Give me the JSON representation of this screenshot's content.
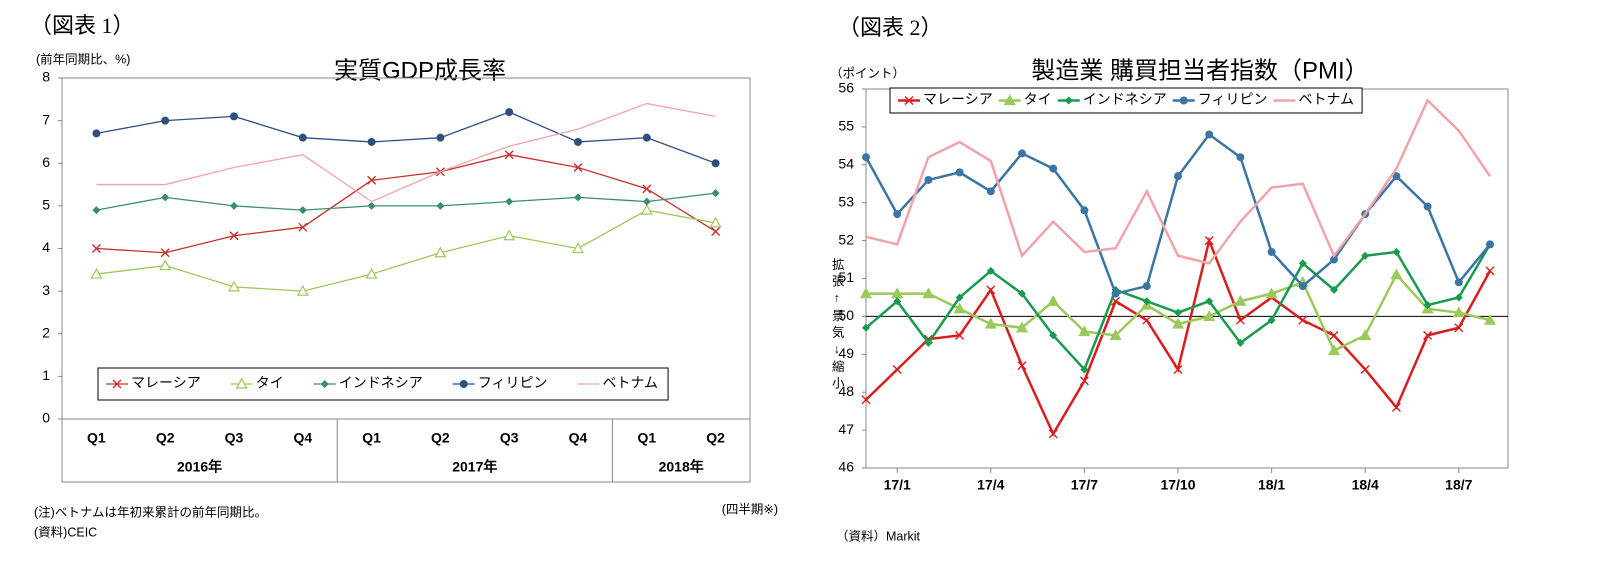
{
  "chart_data": [
    {
      "type": "line",
      "figure_label": "（図表 1）",
      "title": "実質GDP成長率",
      "y_unit_label": "(前年同期比、%)",
      "note": "(注)ベトナムは年初来累計の前年同期比。",
      "source": "(資料)CEIC",
      "x_axis_label": "(四半期※)",
      "groups": [
        {
          "label": "2016年",
          "categories": [
            "Q1",
            "Q2",
            "Q3",
            "Q4"
          ]
        },
        {
          "label": "2017年",
          "categories": [
            "Q1",
            "Q2",
            "Q3",
            "Q4"
          ]
        },
        {
          "label": "2018年",
          "categories": [
            "Q1",
            "Q2"
          ]
        }
      ],
      "ylim": [
        0,
        8
      ],
      "yticks": [
        0,
        1,
        2,
        3,
        4,
        5,
        6,
        7,
        8
      ],
      "grid": false,
      "legend": "bottom",
      "series": [
        {
          "name": "マレーシア",
          "color": "#c8302a",
          "marker": "x",
          "values": [
            4.0,
            3.9,
            4.3,
            4.5,
            5.6,
            5.8,
            6.2,
            5.9,
            5.4,
            4.4
          ]
        },
        {
          "name": "タイ",
          "color": "#9bc95a",
          "marker": "triangle-open",
          "values": [
            3.4,
            3.6,
            3.1,
            3.0,
            3.4,
            3.9,
            4.3,
            4.0,
            4.9,
            4.6
          ]
        },
        {
          "name": "インドネシア",
          "color": "#3a8f6a",
          "marker": "diamond",
          "values": [
            4.9,
            5.2,
            5.0,
            4.9,
            5.0,
            5.0,
            5.1,
            5.2,
            5.1,
            5.3
          ]
        },
        {
          "name": "フィリピン",
          "color": "#2f4f7f",
          "marker": "circle",
          "values": [
            6.7,
            7.0,
            7.1,
            6.6,
            6.5,
            6.6,
            7.2,
            6.5,
            6.6,
            6.0
          ]
        },
        {
          "name": "ベトナム",
          "color": "#f2a3a8",
          "marker": "none",
          "values": [
            5.5,
            5.5,
            5.9,
            6.2,
            5.1,
            5.8,
            6.4,
            6.8,
            7.4,
            7.1
          ]
        }
      ]
    },
    {
      "type": "line",
      "figure_label": "（図表 2）",
      "title": "製造業 購買担当者指数（PMI）",
      "y_unit_label": "（ポイント）",
      "y_axis_label": "拡張↑景気↓縮小",
      "source": "（資料）Markit",
      "categories": [
        null,
        "17/1",
        null,
        null,
        "17/4",
        null,
        null,
        "17/7",
        null,
        null,
        "17/10",
        null,
        null,
        "18/1",
        null,
        null,
        "18/4",
        null,
        null,
        "18/7",
        null
      ],
      "ylim": [
        46,
        56
      ],
      "yticks": [
        46,
        47,
        48,
        49,
        50,
        51,
        52,
        53,
        54,
        55,
        56
      ],
      "grid": false,
      "reference_line": 50,
      "legend": "top-left",
      "series": [
        {
          "name": "マレーシア",
          "color": "#d91e1e",
          "marker": "x",
          "values": [
            47.8,
            48.6,
            49.4,
            49.5,
            50.7,
            48.7,
            46.9,
            48.3,
            50.4,
            49.9,
            48.6,
            52.0,
            49.9,
            50.5,
            49.9,
            49.5,
            48.6,
            47.6,
            49.5,
            49.7,
            51.2
          ]
        },
        {
          "name": "タイ",
          "color": "#9bc95a",
          "marker": "triangle",
          "values": [
            50.6,
            50.6,
            50.6,
            50.2,
            49.8,
            49.7,
            50.4,
            49.6,
            49.5,
            50.3,
            49.8,
            50.0,
            50.4,
            50.6,
            50.9,
            49.1,
            49.5,
            51.1,
            50.2,
            50.1,
            49.9
          ]
        },
        {
          "name": "インドネシア",
          "color": "#1a9a4e",
          "marker": "diamond",
          "values": [
            49.7,
            50.4,
            49.3,
            50.5,
            51.2,
            50.6,
            49.5,
            48.6,
            50.7,
            50.4,
            50.1,
            50.4,
            49.3,
            49.9,
            51.4,
            50.7,
            51.6,
            51.7,
            50.3,
            50.5,
            51.9
          ]
        },
        {
          "name": "フィリピン",
          "color": "#3b75a3",
          "marker": "circle",
          "values": [
            54.2,
            52.7,
            53.6,
            53.8,
            53.3,
            54.3,
            53.9,
            52.8,
            50.6,
            50.8,
            53.7,
            54.8,
            54.2,
            51.7,
            50.8,
            51.5,
            52.7,
            53.7,
            52.9,
            50.9,
            51.9
          ]
        },
        {
          "name": "ベトナム",
          "color": "#f2a3a8",
          "marker": "none",
          "values": [
            52.1,
            51.9,
            54.2,
            54.6,
            54.1,
            51.6,
            52.5,
            51.7,
            51.8,
            53.3,
            51.6,
            51.4,
            52.5,
            53.4,
            53.5,
            51.6,
            52.7,
            53.9,
            55.7,
            54.9,
            53.7
          ]
        }
      ]
    }
  ]
}
